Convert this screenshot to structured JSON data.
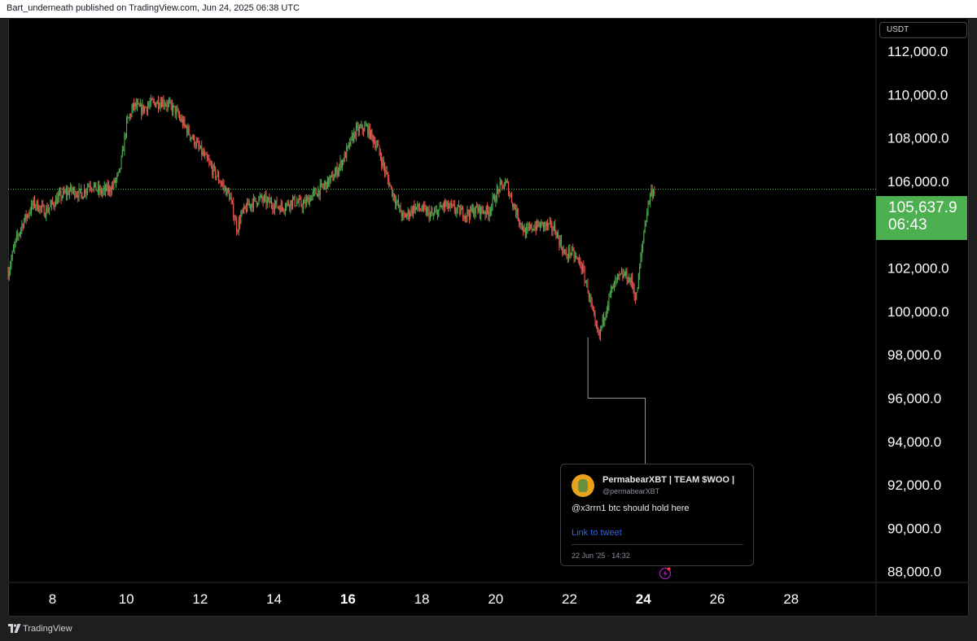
{
  "header": {
    "published": "Bart_underneath published on TradingView.com, Jun 24, 2025 06:38 UTC"
  },
  "currency": "USDT",
  "last_price": {
    "price": "105,637.9",
    "countdown": "06:43"
  },
  "tweet": {
    "name": "PermabearXBT | TEAM $WOO |",
    "handle": "@permabearXBT",
    "text": "@x3rrn1 btc should hold here",
    "link": "Link to tweet",
    "date": "22 Jun '25 · 14:32",
    "avatar": "avatar-icon"
  },
  "footer": {
    "brand": "TradingView"
  },
  "colors": {
    "up": "#4caf50",
    "down": "#ef5350",
    "axis_text": "#ffffff",
    "last_price_line": "#4caf50"
  },
  "chart_data": {
    "type": "line",
    "title": "",
    "xlabel": "",
    "ylabel": "",
    "x_ticks": [
      {
        "label": "8",
        "day": 8,
        "bold": false
      },
      {
        "label": "10",
        "day": 10,
        "bold": false
      },
      {
        "label": "12",
        "day": 12,
        "bold": false
      },
      {
        "label": "14",
        "day": 14,
        "bold": false
      },
      {
        "label": "16",
        "day": 16,
        "bold": true
      },
      {
        "label": "18",
        "day": 18,
        "bold": false
      },
      {
        "label": "20",
        "day": 20,
        "bold": false
      },
      {
        "label": "22",
        "day": 22,
        "bold": false
      },
      {
        "label": "24",
        "day": 24,
        "bold": true
      },
      {
        "label": "26",
        "day": 26,
        "bold": false
      },
      {
        "label": "28",
        "day": 28,
        "bold": false
      }
    ],
    "y_ticks": [
      {
        "label": "112,000.0",
        "value": 112000
      },
      {
        "label": "110,000.0",
        "value": 110000
      },
      {
        "label": "108,000.0",
        "value": 108000
      },
      {
        "label": "106,000.0",
        "value": 106000
      },
      {
        "label": "104,000.0",
        "value": 104000
      },
      {
        "label": "102,000.0",
        "value": 102000
      },
      {
        "label": "100,000.0",
        "value": 100000
      },
      {
        "label": "98,000.0",
        "value": 98000
      },
      {
        "label": "96,000.0",
        "value": 96000
      },
      {
        "label": "94,000.0",
        "value": 94000
      },
      {
        "label": "92,000.0",
        "value": 92000
      },
      {
        "label": "90,000.0",
        "value": 90000
      },
      {
        "label": "88,000.0",
        "value": 88000
      }
    ],
    "xlim": [
      6.8,
      30.3
    ],
    "ylim": [
      87500,
      113500
    ],
    "last_price_value": 105637.9,
    "series": [
      {
        "x": [
          6.8,
          7.0,
          7.2,
          7.5,
          7.8,
          8.2,
          8.5,
          8.8,
          9.0,
          9.3,
          9.6,
          9.8,
          9.9,
          10.0,
          10.2,
          10.4,
          10.7,
          11.0,
          11.3,
          11.6,
          11.9,
          12.2,
          12.5,
          12.8,
          13.0,
          13.1,
          13.3,
          13.6,
          13.9,
          14.2,
          14.5,
          14.8,
          15.0,
          15.3,
          15.6,
          15.9,
          16.2,
          16.5,
          16.8,
          17.0,
          17.2,
          17.5,
          17.8,
          18.0,
          18.3,
          18.6,
          18.9,
          19.2,
          19.5,
          19.8,
          20.1,
          20.3,
          20.4,
          20.6,
          20.8,
          21.0,
          21.3,
          21.6,
          21.9,
          22.0,
          22.3,
          22.5,
          22.7,
          22.8,
          22.9,
          23.1,
          23.3,
          23.5,
          23.7,
          23.8,
          24.0,
          24.1,
          24.2,
          24.3
        ],
        "y": [
          101800,
          103200,
          104100,
          105000,
          104600,
          105300,
          105600,
          105400,
          105900,
          105500,
          105700,
          106300,
          107300,
          108600,
          109500,
          109300,
          109600,
          109700,
          109300,
          108500,
          107700,
          106900,
          106100,
          105300,
          103800,
          104400,
          104900,
          105200,
          105000,
          104800,
          105100,
          104900,
          105300,
          105700,
          106200,
          107100,
          108300,
          108500,
          107600,
          106500,
          105500,
          104300,
          104800,
          104700,
          104400,
          104900,
          104700,
          104500,
          104700,
          104600,
          105700,
          105900,
          105300,
          104400,
          103600,
          103900,
          104000,
          103800,
          102500,
          102800,
          102200,
          101000,
          99300,
          98800,
          99600,
          100800,
          101500,
          101700,
          101300,
          100500,
          103500,
          104700,
          105500,
          105600
        ]
      }
    ],
    "annotation_leader": {
      "from_day": 22.5,
      "from_price": 98800,
      "down_to_price": 96000,
      "over_to_day": 24.05
    },
    "alert_icon": "lightning-icon"
  }
}
